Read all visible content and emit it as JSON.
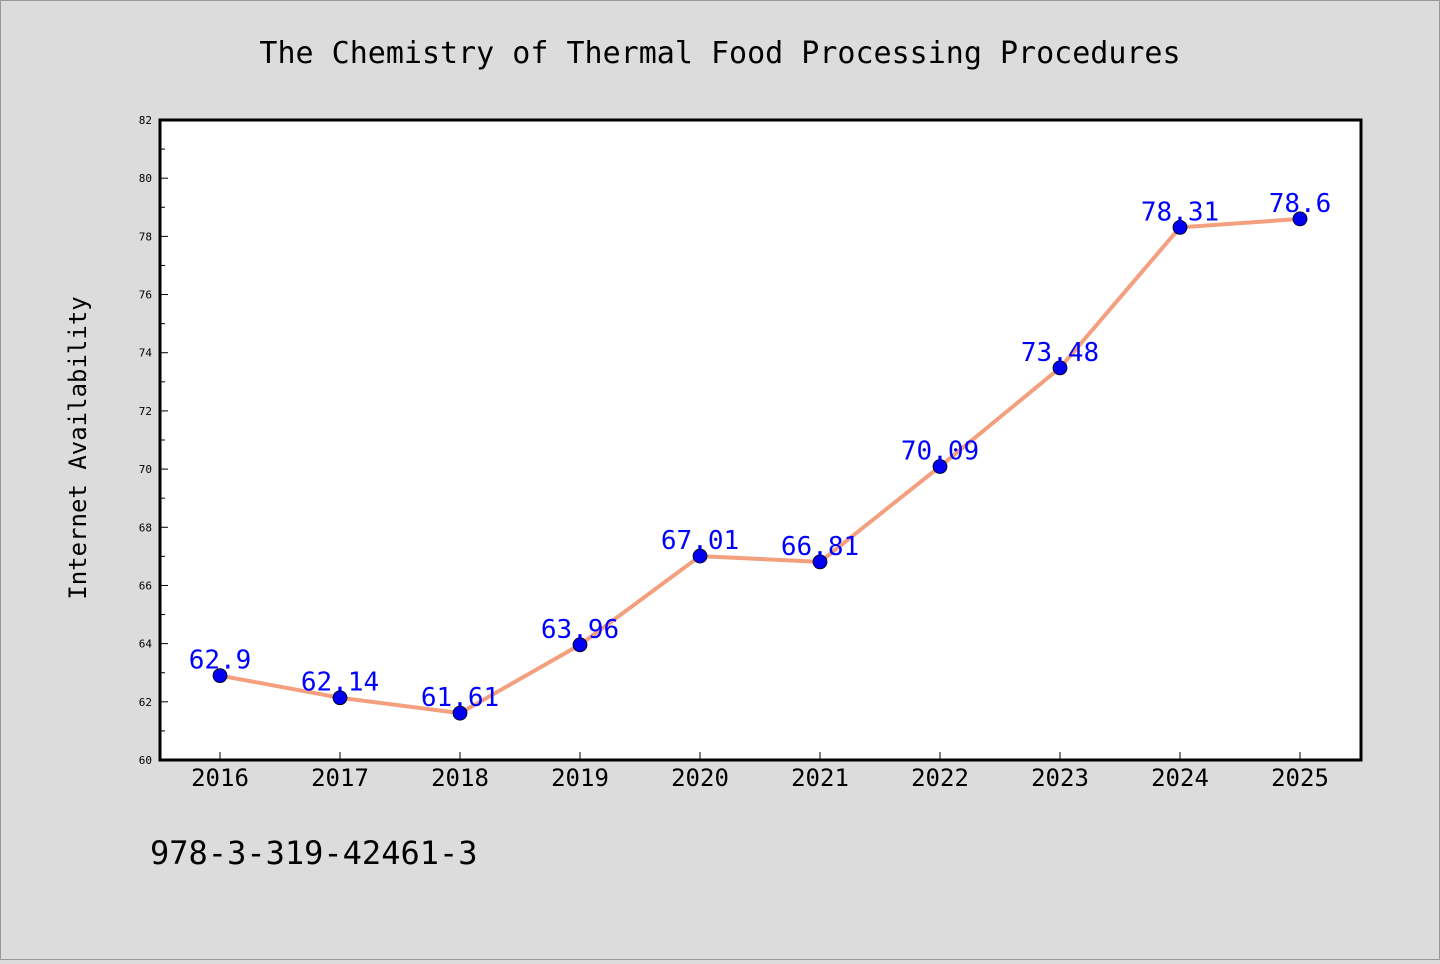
{
  "chart_data": {
    "type": "line",
    "title": "The Chemistry of Thermal Food Processing Procedures",
    "xlabel": "",
    "ylabel": "Internet Availability",
    "categories": [
      "2016",
      "2017",
      "2018",
      "2019",
      "2020",
      "2021",
      "2022",
      "2023",
      "2024",
      "2025"
    ],
    "series": [
      {
        "values": [
          62.9,
          62.14,
          61.61,
          63.96,
          67.01,
          66.81,
          70.09,
          73.48,
          78.31,
          78.6
        ],
        "data_labels": [
          "62.9",
          "62.14",
          "61.61",
          "63.96",
          "67.01",
          "66.81",
          "70.09",
          "73.48",
          "78.31",
          "78.6"
        ]
      }
    ],
    "ylim": [
      60,
      82
    ],
    "y_ticks": [
      "60",
      "62",
      "64",
      "66",
      "68",
      "70",
      "72",
      "74",
      "76",
      "78",
      "80",
      "82"
    ],
    "grid": false,
    "legend": "none",
    "colors": {
      "line": "#f4a07e",
      "marker": "#0000ee",
      "data_label": "#0000ff",
      "background": "#dcdcdc",
      "plot_background": "#ffffff"
    }
  },
  "footer": {
    "isbn": "978-3-319-42461-3"
  }
}
